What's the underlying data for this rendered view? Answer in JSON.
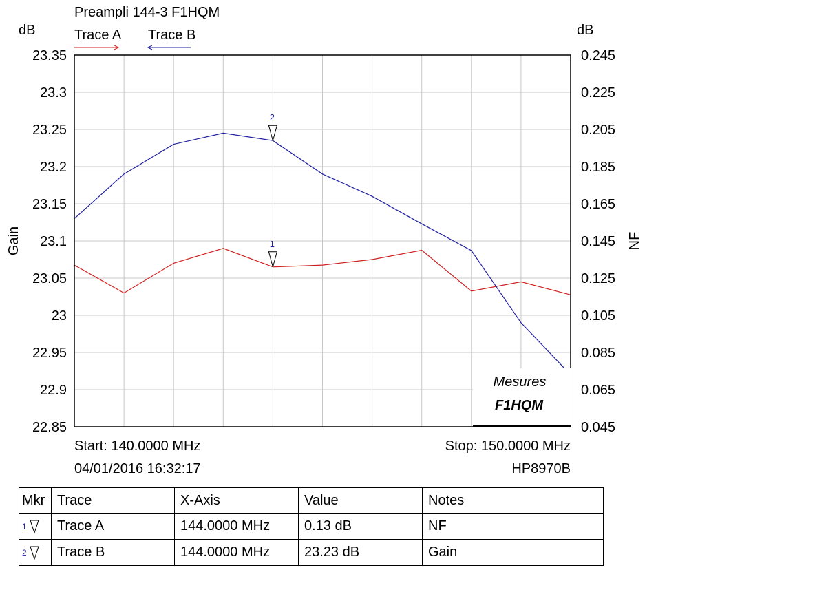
{
  "header": {
    "title": "Preampli 144-3 F1HQM",
    "legend": [
      {
        "label": "Trace A",
        "color": "#d02020"
      },
      {
        "label": "Trace B",
        "color": "#2020a0"
      }
    ]
  },
  "axes": {
    "left_unit": "dB",
    "right_unit": "dB",
    "left_label": "Gain",
    "right_label": "NF",
    "left_ticks": [
      "23.35",
      "23.3",
      "23.25",
      "23.2",
      "23.15",
      "23.1",
      "23.05",
      "23",
      "22.95",
      "22.9",
      "22.85"
    ],
    "right_ticks": [
      "0.245",
      "0.225",
      "0.205",
      "0.185",
      "0.165",
      "0.145",
      "0.125",
      "0.105",
      "0.085",
      "0.065",
      "0.045"
    ]
  },
  "footer": {
    "start": "Start: 140.0000 MHz",
    "stop": "Stop: 150.0000 MHz",
    "datetime": "04/01/2016 16:32:17",
    "instrument": "HP8970B"
  },
  "stamp": {
    "line1": "Mesures",
    "line2": "F1HQM"
  },
  "markers": [
    {
      "number": "1",
      "x": 144,
      "trace": "A"
    },
    {
      "number": "2",
      "x": 144,
      "trace": "B"
    }
  ],
  "chart_data": {
    "type": "line",
    "title": "Preampli 144-3 F1HQM",
    "x": [
      140,
      141,
      142,
      143,
      144,
      145,
      146,
      147,
      148,
      149,
      150
    ],
    "xlim": [
      140,
      150
    ],
    "ylabel": "Gain",
    "y2label": "NF",
    "ylim": [
      22.85,
      23.35
    ],
    "y2lim": [
      0.045,
      0.245
    ],
    "grid": true,
    "series": [
      {
        "name": "Trace A",
        "axis": "right",
        "color": "#d02020",
        "values": [
          0.132,
          0.117,
          0.133,
          0.141,
          0.131,
          0.132,
          0.135,
          0.14,
          0.118,
          0.123,
          0.116
        ]
      },
      {
        "name": "Trace B",
        "axis": "left",
        "color": "#2020a0",
        "values": [
          23.13,
          23.19,
          23.23,
          23.245,
          23.235,
          23.19,
          23.16,
          23.123,
          23.087,
          22.99,
          22.92
        ]
      }
    ]
  },
  "table": {
    "headers": [
      "Mkr",
      "Trace",
      "X-Axis",
      "Value",
      "Notes"
    ],
    "rows": [
      {
        "mkr": "1",
        "trace": "Trace A",
        "x": "144.0000 MHz",
        "value": "0.13 dB",
        "notes": "NF"
      },
      {
        "mkr": "2",
        "trace": "Trace B",
        "x": "144.0000 MHz",
        "value": "23.23 dB",
        "notes": "Gain"
      }
    ]
  }
}
